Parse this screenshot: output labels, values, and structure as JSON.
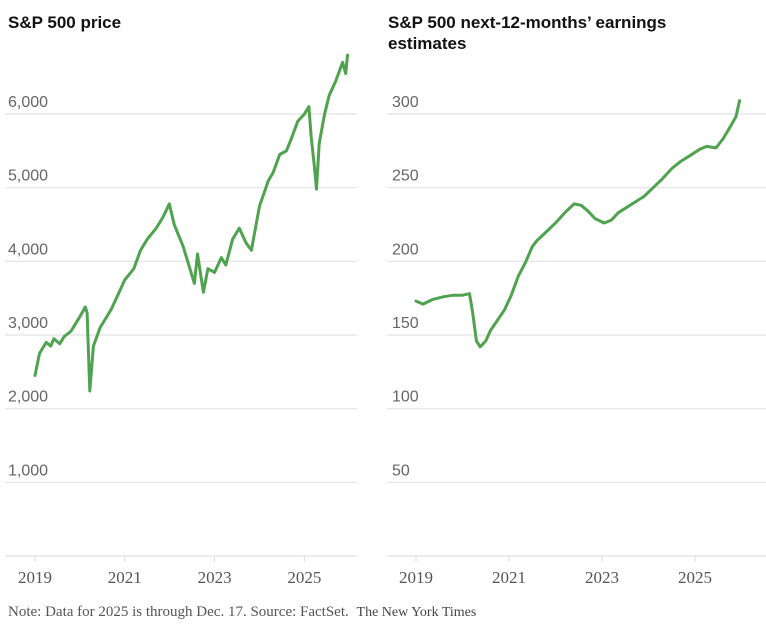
{
  "chart_data": [
    {
      "type": "line",
      "title": "S&P 500 price",
      "xlabel": "",
      "ylabel": "",
      "xlim": [
        2019,
        2026
      ],
      "ylim": [
        0,
        6000
      ],
      "x_ticks": [
        2019,
        2021,
        2023,
        2025
      ],
      "x_tick_labels": [
        "2019",
        "2021",
        "2023",
        "2025"
      ],
      "y_ticks": [
        1000,
        2000,
        3000,
        4000,
        5000,
        6000
      ],
      "y_tick_labels": [
        "1,000",
        "2,000",
        "3,000",
        "4,000",
        "5,000",
        "6,000"
      ],
      "grid": true,
      "color": "#4fa34f",
      "series": [
        {
          "name": "S&P 500 price",
          "x": [
            2019.0,
            2019.1,
            2019.25,
            2019.35,
            2019.42,
            2019.55,
            2019.65,
            2019.8,
            2020.0,
            2020.12,
            2020.16,
            2020.22,
            2020.3,
            2020.45,
            2020.6,
            2020.7,
            2020.85,
            2021.0,
            2021.2,
            2021.35,
            2021.5,
            2021.7,
            2021.85,
            2021.99,
            2022.1,
            2022.2,
            2022.3,
            2022.45,
            2022.55,
            2022.62,
            2022.75,
            2022.85,
            2023.0,
            2023.15,
            2023.25,
            2023.4,
            2023.55,
            2023.7,
            2023.82,
            2024.0,
            2024.2,
            2024.3,
            2024.45,
            2024.6,
            2024.7,
            2024.85,
            2025.0,
            2025.1,
            2025.15,
            2025.22,
            2025.27,
            2025.33,
            2025.45,
            2025.55,
            2025.7,
            2025.85,
            2025.92,
            2025.96
          ],
          "y": [
            2450,
            2750,
            2900,
            2850,
            2950,
            2880,
            2980,
            3050,
            3250,
            3380,
            3300,
            2240,
            2850,
            3100,
            3250,
            3350,
            3550,
            3750,
            3900,
            4150,
            4300,
            4450,
            4600,
            4780,
            4500,
            4350,
            4200,
            3900,
            3700,
            4100,
            3580,
            3900,
            3850,
            4050,
            3950,
            4300,
            4450,
            4250,
            4150,
            4750,
            5100,
            5200,
            5450,
            5500,
            5650,
            5900,
            6000,
            6100,
            5700,
            5300,
            4980,
            5600,
            6000,
            6250,
            6450,
            6700,
            6550,
            6800
          ]
        }
      ]
    },
    {
      "type": "line",
      "title": "S&P 500 next-12-months’ earnings estimates",
      "xlabel": "",
      "ylabel": "",
      "xlim": [
        2019,
        2026
      ],
      "ylim": [
        0,
        300
      ],
      "x_ticks": [
        2019,
        2021,
        2023,
        2025
      ],
      "x_tick_labels": [
        "2019",
        "2021",
        "2023",
        "2025"
      ],
      "y_ticks": [
        50,
        100,
        150,
        200,
        250,
        300
      ],
      "y_tick_labels": [
        "50",
        "100",
        "150",
        "200",
        "250",
        "300"
      ],
      "grid": true,
      "color": "#4fa34f",
      "series": [
        {
          "name": "Next-12-months earnings estimates",
          "x": [
            2019.0,
            2019.15,
            2019.35,
            2019.6,
            2019.8,
            2020.0,
            2020.15,
            2020.22,
            2020.3,
            2020.38,
            2020.5,
            2020.6,
            2020.75,
            2020.9,
            2021.05,
            2021.2,
            2021.35,
            2021.5,
            2021.6,
            2021.8,
            2022.0,
            2022.2,
            2022.4,
            2022.55,
            2022.7,
            2022.85,
            2023.05,
            2023.2,
            2023.35,
            2023.5,
            2023.7,
            2023.9,
            2024.1,
            2024.3,
            2024.5,
            2024.7,
            2024.9,
            2025.1,
            2025.25,
            2025.45,
            2025.6,
            2025.75,
            2025.88,
            2025.96
          ],
          "y": [
            173,
            171,
            174,
            176,
            177,
            177,
            178,
            165,
            146,
            142,
            146,
            153,
            160,
            167,
            177,
            190,
            199,
            210,
            214,
            220,
            226,
            233,
            239,
            238,
            234,
            229,
            226,
            228,
            233,
            236,
            240,
            244,
            250,
            256,
            263,
            268,
            272,
            276,
            278,
            277,
            283,
            291,
            298,
            309
          ]
        }
      ]
    }
  ],
  "titles": {
    "left": "S&P 500 price",
    "right": "S&P 500 next-12-months’ earnings estimates"
  },
  "footer": {
    "note": "Note: Data for 2025 is through Dec. 17.  Source: FactSet.",
    "brand": "The New York Times"
  }
}
